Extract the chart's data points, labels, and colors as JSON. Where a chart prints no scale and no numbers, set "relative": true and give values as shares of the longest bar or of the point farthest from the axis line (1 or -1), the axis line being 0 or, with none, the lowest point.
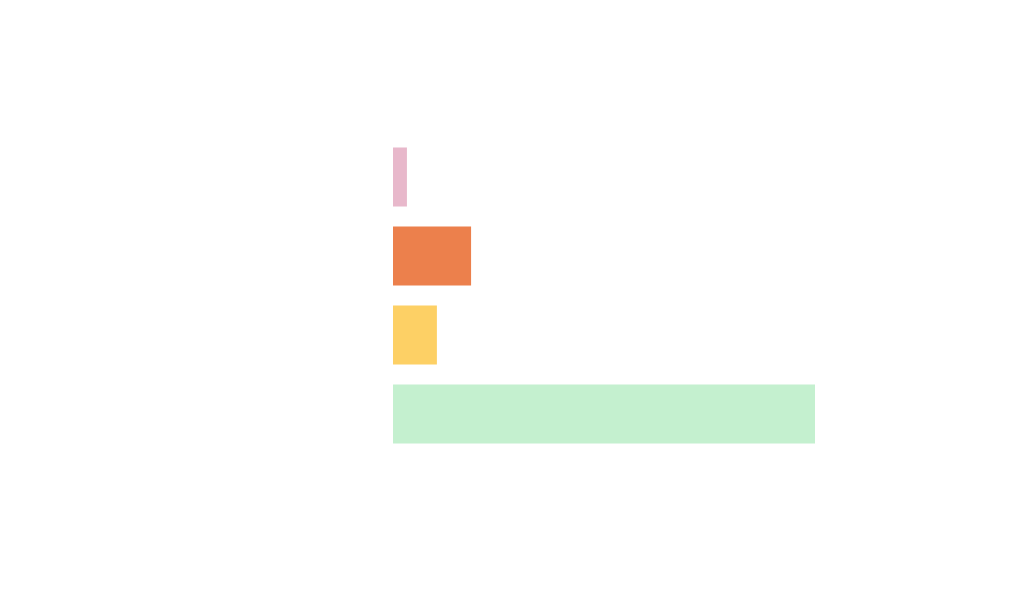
{
  "chart_data": {
    "type": "bar",
    "orientation": "horizontal",
    "relative": true,
    "categories": [
      null,
      null,
      null,
      null
    ],
    "values": [
      0.033,
      0.185,
      0.104,
      1
    ],
    "colors": [
      "#e8b8cb",
      "#ec804c",
      "#fdd065",
      "#c4f0cf"
    ]
  }
}
